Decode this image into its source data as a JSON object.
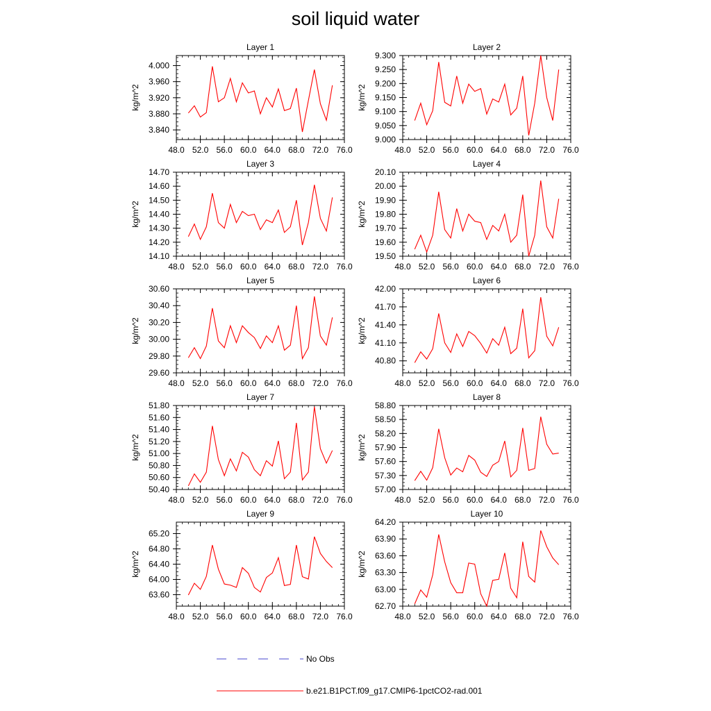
{
  "title": "soil liquid water",
  "colors": {
    "model": "#ff0000",
    "obs": "#4444cc",
    "axis": "#000000"
  },
  "legend": [
    {
      "label": "No Obs",
      "style": "dashed",
      "color": "#4444cc"
    },
    {
      "label": "b.e21.B1PCT.f09_g17.CMIP6-1pctCO2-rad.001",
      "style": "solid",
      "color": "#ff0000"
    }
  ],
  "chart_data": [
    {
      "type": "line",
      "title": "Layer 1",
      "ylabel": "kg/m^2",
      "xlim": [
        48,
        76
      ],
      "ylim": [
        3.816,
        4.025
      ],
      "xticks": [
        48,
        52,
        56,
        60,
        64,
        68,
        72,
        76
      ],
      "xtick_labels": [
        "48.0",
        "52.0",
        "56.0",
        "60.0",
        "64.0",
        "68.0",
        "72.0",
        "76.0"
      ],
      "yticks": [
        3.84,
        3.88,
        3.92,
        3.96,
        4.0
      ],
      "ytick_labels": [
        "3.840",
        "3.880",
        "3.920",
        "3.960",
        "4.000"
      ],
      "series": [
        {
          "x": [
            50,
            51,
            52,
            53,
            54,
            55,
            56,
            57,
            58,
            59,
            60,
            61,
            62,
            63,
            64,
            65,
            66,
            67,
            68,
            69,
            70,
            71,
            72,
            73,
            74
          ],
          "values": [
            3.882,
            3.9,
            3.872,
            3.883,
            3.998,
            3.91,
            3.92,
            3.968,
            3.91,
            3.957,
            3.932,
            3.937,
            3.88,
            3.92,
            3.897,
            3.942,
            3.888,
            3.893,
            3.944,
            3.835,
            3.913,
            3.99,
            3.905,
            3.864,
            3.951
          ]
        }
      ]
    },
    {
      "type": "line",
      "title": "Layer 2",
      "ylabel": "kg/m^2",
      "xlim": [
        48,
        76
      ],
      "ylim": [
        9.0,
        9.3
      ],
      "xticks": [
        48,
        52,
        56,
        60,
        64,
        68,
        72,
        76
      ],
      "xtick_labels": [
        "48.0",
        "52.0",
        "56.0",
        "60.0",
        "64.0",
        "68.0",
        "72.0",
        "76.0"
      ],
      "yticks": [
        9.0,
        9.05,
        9.1,
        9.15,
        9.2,
        9.25,
        9.3
      ],
      "ytick_labels": [
        "9.000",
        "9.050",
        "9.100",
        "9.150",
        "9.200",
        "9.250",
        "9.300"
      ],
      "series": [
        {
          "x": [
            50,
            51,
            52,
            53,
            54,
            55,
            56,
            57,
            58,
            59,
            60,
            61,
            62,
            63,
            64,
            65,
            66,
            67,
            68,
            69,
            70,
            71,
            72,
            73,
            74
          ],
          "values": [
            9.068,
            9.13,
            9.053,
            9.103,
            9.277,
            9.133,
            9.12,
            9.227,
            9.13,
            9.198,
            9.172,
            9.182,
            9.091,
            9.145,
            9.134,
            9.198,
            9.088,
            9.112,
            9.227,
            9.015,
            9.13,
            9.3,
            9.15,
            9.068,
            9.25
          ]
        }
      ]
    },
    {
      "type": "line",
      "title": "Layer 3",
      "ylabel": "kg/m^2",
      "xlim": [
        48,
        76
      ],
      "ylim": [
        14.1,
        14.7
      ],
      "xticks": [
        48,
        52,
        56,
        60,
        64,
        68,
        72,
        76
      ],
      "xtick_labels": [
        "48.0",
        "52.0",
        "56.0",
        "60.0",
        "64.0",
        "68.0",
        "72.0",
        "76.0"
      ],
      "yticks": [
        14.1,
        14.2,
        14.3,
        14.4,
        14.5,
        14.6,
        14.7
      ],
      "ytick_labels": [
        "14.10",
        "14.20",
        "14.30",
        "14.40",
        "14.50",
        "14.60",
        "14.70"
      ],
      "series": [
        {
          "x": [
            50,
            51,
            52,
            53,
            54,
            55,
            56,
            57,
            58,
            59,
            60,
            61,
            62,
            63,
            64,
            65,
            66,
            67,
            68,
            69,
            70,
            71,
            72,
            73,
            74
          ],
          "values": [
            14.24,
            14.33,
            14.22,
            14.31,
            14.55,
            14.34,
            14.3,
            14.47,
            14.34,
            14.42,
            14.39,
            14.4,
            14.29,
            14.36,
            14.34,
            14.43,
            14.27,
            14.31,
            14.5,
            14.18,
            14.34,
            14.61,
            14.37,
            14.28,
            14.52
          ]
        }
      ]
    },
    {
      "type": "line",
      "title": "Layer 4",
      "ylabel": "kg/m^2",
      "xlim": [
        48,
        76
      ],
      "ylim": [
        19.5,
        20.1
      ],
      "xticks": [
        48,
        52,
        56,
        60,
        64,
        68,
        72,
        76
      ],
      "xtick_labels": [
        "48.0",
        "52.0",
        "56.0",
        "60.0",
        "64.0",
        "68.0",
        "72.0",
        "76.0"
      ],
      "yticks": [
        19.5,
        19.6,
        19.7,
        19.8,
        19.9,
        20.0,
        20.1
      ],
      "ytick_labels": [
        "19.50",
        "19.60",
        "19.70",
        "19.80",
        "19.90",
        "20.00",
        "20.10"
      ],
      "series": [
        {
          "x": [
            50,
            51,
            52,
            53,
            54,
            55,
            56,
            57,
            58,
            59,
            60,
            61,
            62,
            63,
            64,
            65,
            66,
            67,
            68,
            69,
            70,
            71,
            72,
            73,
            74
          ],
          "values": [
            19.55,
            19.65,
            19.53,
            19.65,
            19.96,
            19.69,
            19.63,
            19.84,
            19.68,
            19.8,
            19.75,
            19.74,
            19.62,
            19.72,
            19.68,
            19.8,
            19.6,
            19.65,
            19.94,
            19.5,
            19.65,
            20.04,
            19.71,
            19.63,
            19.91
          ]
        }
      ]
    },
    {
      "type": "line",
      "title": "Layer 5",
      "ylabel": "kg/m^2",
      "xlim": [
        48,
        76
      ],
      "ylim": [
        29.6,
        30.6
      ],
      "xticks": [
        48,
        52,
        56,
        60,
        64,
        68,
        72,
        76
      ],
      "xtick_labels": [
        "48.0",
        "52.0",
        "56.0",
        "60.0",
        "64.0",
        "68.0",
        "72.0",
        "76.0"
      ],
      "yticks": [
        29.6,
        29.8,
        30.0,
        30.2,
        30.4,
        30.6
      ],
      "ytick_labels": [
        "29.60",
        "29.80",
        "30.00",
        "30.20",
        "30.40",
        "30.60"
      ],
      "series": [
        {
          "x": [
            50,
            51,
            52,
            53,
            54,
            55,
            56,
            57,
            58,
            59,
            60,
            61,
            62,
            63,
            64,
            65,
            66,
            67,
            68,
            69,
            70,
            71,
            72,
            73,
            74
          ],
          "values": [
            29.78,
            29.9,
            29.77,
            29.92,
            30.37,
            29.98,
            29.9,
            30.16,
            29.96,
            30.16,
            30.08,
            30.02,
            29.89,
            30.04,
            29.96,
            30.16,
            29.87,
            29.93,
            30.4,
            29.77,
            29.9,
            30.51,
            30.04,
            29.93,
            30.26
          ]
        }
      ]
    },
    {
      "type": "line",
      "title": "Layer 6",
      "ylabel": "kg/m^2",
      "xlim": [
        48,
        76
      ],
      "ylim": [
        40.6,
        42.0
      ],
      "xticks": [
        48,
        52,
        56,
        60,
        64,
        68,
        72,
        76
      ],
      "xtick_labels": [
        "48.0",
        "52.0",
        "56.0",
        "60.0",
        "64.0",
        "68.0",
        "72.0",
        "76.0"
      ],
      "yticks": [
        40.8,
        41.1,
        41.4,
        41.7,
        42.0
      ],
      "ytick_labels": [
        "40.80",
        "41.10",
        "41.40",
        "41.70",
        "42.00"
      ],
      "series": [
        {
          "x": [
            50,
            51,
            52,
            53,
            54,
            55,
            56,
            57,
            58,
            59,
            60,
            61,
            62,
            63,
            64,
            65,
            66,
            67,
            68,
            69,
            70,
            71,
            72,
            73,
            74
          ],
          "values": [
            40.77,
            40.95,
            40.83,
            41.0,
            41.59,
            41.1,
            40.94,
            41.25,
            41.04,
            41.29,
            41.22,
            41.09,
            40.93,
            41.17,
            41.06,
            41.36,
            40.92,
            41.01,
            41.67,
            40.85,
            40.97,
            41.86,
            41.21,
            41.05,
            41.36
          ]
        }
      ]
    },
    {
      "type": "line",
      "title": "Layer 7",
      "ylabel": "kg/m^2",
      "xlim": [
        48,
        76
      ],
      "ylim": [
        50.4,
        51.8
      ],
      "xticks": [
        48,
        52,
        56,
        60,
        64,
        68,
        72,
        76
      ],
      "xtick_labels": [
        "48.0",
        "52.0",
        "56.0",
        "60.0",
        "64.0",
        "68.0",
        "72.0",
        "76.0"
      ],
      "yticks": [
        50.4,
        50.6,
        50.8,
        51.0,
        51.2,
        51.4,
        51.6,
        51.8
      ],
      "ytick_labels": [
        "50.40",
        "50.60",
        "50.80",
        "51.00",
        "51.20",
        "51.40",
        "51.60",
        "51.80"
      ],
      "series": [
        {
          "x": [
            50,
            51,
            52,
            53,
            54,
            55,
            56,
            57,
            58,
            59,
            60,
            61,
            62,
            63,
            64,
            65,
            66,
            67,
            68,
            69,
            70,
            71,
            72,
            73,
            74
          ],
          "values": [
            50.46,
            50.66,
            50.52,
            50.69,
            51.46,
            50.9,
            50.63,
            50.91,
            50.71,
            51.02,
            50.94,
            50.73,
            50.63,
            50.88,
            50.79,
            51.21,
            50.58,
            50.69,
            51.51,
            50.56,
            50.69,
            51.78,
            51.08,
            50.84,
            51.05
          ]
        }
      ]
    },
    {
      "type": "line",
      "title": "Layer 8",
      "ylabel": "kg/m^2",
      "xlim": [
        48,
        76
      ],
      "ylim": [
        57.0,
        58.8
      ],
      "xticks": [
        48,
        52,
        56,
        60,
        64,
        68,
        72,
        76
      ],
      "xtick_labels": [
        "48.0",
        "52.0",
        "56.0",
        "60.0",
        "64.0",
        "68.0",
        "72.0",
        "76.0"
      ],
      "yticks": [
        57.0,
        57.3,
        57.6,
        57.9,
        58.2,
        58.5,
        58.8
      ],
      "ytick_labels": [
        "57.00",
        "57.30",
        "57.60",
        "57.90",
        "58.20",
        "58.50",
        "58.80"
      ],
      "series": [
        {
          "x": [
            50,
            51,
            52,
            53,
            54,
            55,
            56,
            57,
            58,
            59,
            60,
            61,
            62,
            63,
            64,
            65,
            66,
            67,
            68,
            69,
            70,
            71,
            72,
            73,
            74
          ],
          "values": [
            57.19,
            57.39,
            57.2,
            57.47,
            58.3,
            57.68,
            57.31,
            57.46,
            57.38,
            57.73,
            57.63,
            57.37,
            57.28,
            57.52,
            57.6,
            58.04,
            57.27,
            57.41,
            58.32,
            57.41,
            57.45,
            58.56,
            57.97,
            57.76,
            57.78
          ]
        }
      ]
    },
    {
      "type": "line",
      "title": "Layer 9",
      "ylabel": "kg/m^2",
      "xlim": [
        48,
        76
      ],
      "ylim": [
        63.3,
        65.5
      ],
      "xticks": [
        48,
        52,
        56,
        60,
        64,
        68,
        72,
        76
      ],
      "xtick_labels": [
        "48.0",
        "52.0",
        "56.0",
        "60.0",
        "64.0",
        "68.0",
        "72.0",
        "76.0"
      ],
      "yticks": [
        63.6,
        64.0,
        64.4,
        64.8,
        65.2
      ],
      "ytick_labels": [
        "63.60",
        "64.00",
        "64.40",
        "64.80",
        "65.20"
      ],
      "series": [
        {
          "x": [
            50,
            51,
            52,
            53,
            54,
            55,
            56,
            57,
            58,
            59,
            60,
            61,
            62,
            63,
            64,
            65,
            66,
            67,
            68,
            69,
            70,
            71,
            72,
            73,
            74
          ],
          "values": [
            63.59,
            63.9,
            63.74,
            64.08,
            64.9,
            64.27,
            63.88,
            63.85,
            63.79,
            64.31,
            64.16,
            63.79,
            63.67,
            64.05,
            64.17,
            64.57,
            63.84,
            63.87,
            64.9,
            64.07,
            64.01,
            65.12,
            64.68,
            64.47,
            64.31
          ]
        }
      ]
    },
    {
      "type": "line",
      "title": "Layer 10",
      "ylabel": "kg/m^2",
      "xlim": [
        48,
        76
      ],
      "ylim": [
        62.7,
        64.2
      ],
      "xticks": [
        48,
        52,
        56,
        60,
        64,
        68,
        72,
        76
      ],
      "xtick_labels": [
        "48.0",
        "52.0",
        "56.0",
        "60.0",
        "64.0",
        "68.0",
        "72.0",
        "76.0"
      ],
      "yticks": [
        62.7,
        63.0,
        63.3,
        63.6,
        63.9,
        64.2
      ],
      "ytick_labels": [
        "62.70",
        "63.00",
        "63.30",
        "63.60",
        "63.90",
        "64.20"
      ],
      "series": [
        {
          "x": [
            50,
            51,
            52,
            53,
            54,
            55,
            56,
            57,
            58,
            59,
            60,
            61,
            62,
            63,
            64,
            65,
            66,
            67,
            68,
            69,
            70,
            71,
            72,
            73,
            74
          ],
          "values": [
            62.74,
            62.99,
            62.86,
            63.26,
            63.98,
            63.49,
            63.12,
            62.94,
            62.94,
            63.47,
            63.45,
            62.92,
            62.7,
            63.16,
            63.18,
            63.65,
            63.02,
            62.85,
            63.85,
            63.23,
            63.13,
            64.05,
            63.76,
            63.56,
            63.44
          ]
        }
      ]
    }
  ]
}
